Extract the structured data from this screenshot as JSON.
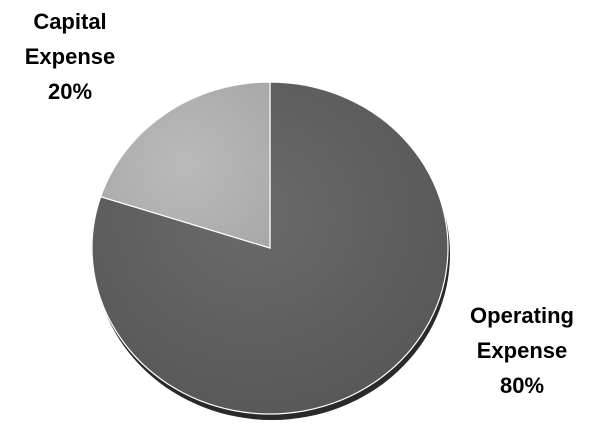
{
  "chart_data": {
    "type": "pie",
    "title": "",
    "start_angle_deg": 0,
    "direction": "clockwise",
    "slices": [
      {
        "label": "Operating Expense",
        "label_lines": [
          "Operating",
          "Expense",
          "80%"
        ],
        "value": 80,
        "value_label": "80%",
        "color": "#616161"
      },
      {
        "label": "Capital Expense",
        "label_lines": [
          "Capital",
          "Expense",
          "20%"
        ],
        "value": 20,
        "value_label": "20%",
        "color": "#b1b1b1"
      }
    ]
  }
}
